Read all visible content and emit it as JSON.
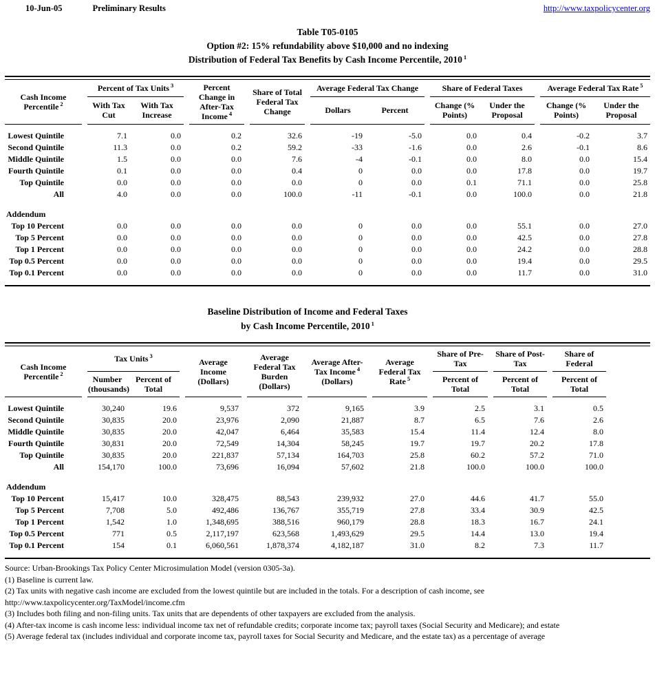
{
  "colors": {
    "link_blue": "#0000EE",
    "text": "#000000",
    "background": "#FFFFFF"
  },
  "page": {
    "date": "10-Jun-05",
    "status": "Preliminary Results",
    "link": "http://www.taxpolicycenter.org"
  },
  "table1": {
    "title_line1": "Table T05-0105",
    "title_line2": "Option #2: 15% refundability above $10,000 and no indexing",
    "title_line3": "Distribution of Federal Tax Benefits by Cash Income Percentile, 2010",
    "title_sup": "1",
    "header": {
      "label": {
        "text": "Cash Income Percentile",
        "sup": "2"
      },
      "groups": [
        {
          "text": "Percent of Tax Units",
          "sup": "3",
          "children": [
            "With Tax Cut",
            "With Tax Increase"
          ]
        },
        {
          "text": "Percent Change in After-Tax Income",
          "sup": "4"
        },
        {
          "text": "Share of Total Federal Tax Change"
        },
        {
          "text": "Average Federal Tax Change",
          "children": [
            "Dollars",
            "Percent"
          ]
        },
        {
          "text": "Share of Federal Taxes",
          "children": [
            "Change (% Points)",
            "Under the Proposal"
          ]
        },
        {
          "text": "Average Federal Tax Rate",
          "sup": "5",
          "children": [
            "Change (% Points)",
            "Under the Proposal"
          ]
        }
      ]
    },
    "rows": [
      {
        "label": "Lowest Quintile",
        "values": [
          "7.1",
          "0.0",
          "0.2",
          "32.6",
          "-19",
          "-5.0",
          "0.0",
          "0.4",
          "-0.2",
          "3.7"
        ]
      },
      {
        "label": "Second Quintile",
        "values": [
          "11.3",
          "0.0",
          "0.2",
          "59.2",
          "-33",
          "-1.6",
          "0.0",
          "2.6",
          "-0.1",
          "8.6"
        ]
      },
      {
        "label": "Middle Quintile",
        "values": [
          "1.5",
          "0.0",
          "0.0",
          "7.6",
          "-4",
          "-0.1",
          "0.0",
          "8.0",
          "0.0",
          "15.4"
        ]
      },
      {
        "label": "Fourth Quintile",
        "values": [
          "0.1",
          "0.0",
          "0.0",
          "0.4",
          "0",
          "0.0",
          "0.0",
          "17.8",
          "0.0",
          "19.7"
        ]
      },
      {
        "label": "Top Quintile",
        "values": [
          "0.0",
          "0.0",
          "0.0",
          "0.0",
          "0",
          "0.0",
          "0.1",
          "71.1",
          "0.0",
          "25.8"
        ]
      },
      {
        "label": "All",
        "values": [
          "4.0",
          "0.0",
          "0.0",
          "100.0",
          "-11",
          "-0.1",
          "0.0",
          "100.0",
          "0.0",
          "21.8"
        ]
      }
    ],
    "addendum_label": "Addendum",
    "addendum_rows": [
      {
        "label": "Top 10 Percent",
        "values": [
          "0.0",
          "0.0",
          "0.0",
          "0.0",
          "0",
          "0.0",
          "0.0",
          "55.1",
          "0.0",
          "27.0"
        ]
      },
      {
        "label": "Top 5 Percent",
        "values": [
          "0.0",
          "0.0",
          "0.0",
          "0.0",
          "0",
          "0.0",
          "0.0",
          "42.5",
          "0.0",
          "27.8"
        ]
      },
      {
        "label": "Top 1 Percent",
        "values": [
          "0.0",
          "0.0",
          "0.0",
          "0.0",
          "0",
          "0.0",
          "0.0",
          "24.2",
          "0.0",
          "28.8"
        ]
      },
      {
        "label": "Top 0.5 Percent",
        "values": [
          "0.0",
          "0.0",
          "0.0",
          "0.0",
          "0",
          "0.0",
          "0.0",
          "19.4",
          "0.0",
          "29.5"
        ]
      },
      {
        "label": "Top 0.1 Percent",
        "values": [
          "0.0",
          "0.0",
          "0.0",
          "0.0",
          "0",
          "0.0",
          "0.0",
          "11.7",
          "0.0",
          "31.0"
        ]
      }
    ]
  },
  "table2": {
    "title_line1": "Baseline Distribution of Income and Federal Taxes",
    "title_line2": "by Cash Income Percentile, 2010",
    "title_sup": "1",
    "header": {
      "label": {
        "text": "Cash Income Percentile",
        "sup": "2"
      },
      "groups": [
        {
          "text": "Tax Units",
          "sup": "3",
          "children": [
            "Number (thousands)",
            "Percent of Total"
          ]
        },
        {
          "text": "Average Income (Dollars)"
        },
        {
          "text": "Average Federal Tax Burden (Dollars)"
        },
        {
          "text": "Average After-Tax Income",
          "sup": "4",
          "suffix": " (Dollars)"
        },
        {
          "text": "Average Federal Tax Rate",
          "sup": "5"
        },
        {
          "text": "Share of Pre-Tax",
          "children": [
            "Percent of Total"
          ]
        },
        {
          "text": "Share of Post-Tax",
          "children": [
            "Percent of Total"
          ]
        },
        {
          "text": "Share of Federal",
          "children": [
            "Percent of Total"
          ]
        }
      ]
    },
    "rows": [
      {
        "label": "Lowest Quintile",
        "values": [
          "30,240",
          "19.6",
          "9,537",
          "372",
          "9,165",
          "3.9",
          "2.5",
          "3.1",
          "0.5"
        ]
      },
      {
        "label": "Second Quintile",
        "values": [
          "30,835",
          "20.0",
          "23,976",
          "2,090",
          "21,887",
          "8.7",
          "6.5",
          "7.6",
          "2.6"
        ]
      },
      {
        "label": "Middle Quintile",
        "values": [
          "30,835",
          "20.0",
          "42,047",
          "6,464",
          "35,583",
          "15.4",
          "11.4",
          "12.4",
          "8.0"
        ]
      },
      {
        "label": "Fourth Quintile",
        "values": [
          "30,831",
          "20.0",
          "72,549",
          "14,304",
          "58,245",
          "19.7",
          "19.7",
          "20.2",
          "17.8"
        ]
      },
      {
        "label": "Top Quintile",
        "values": [
          "30,835",
          "20.0",
          "221,837",
          "57,134",
          "164,703",
          "25.8",
          "60.2",
          "57.2",
          "71.0"
        ]
      },
      {
        "label": "All",
        "values": [
          "154,170",
          "100.0",
          "73,696",
          "16,094",
          "57,602",
          "21.8",
          "100.0",
          "100.0",
          "100.0"
        ]
      }
    ],
    "addendum_label": "Addendum",
    "addendum_rows": [
      {
        "label": "Top 10 Percent",
        "values": [
          "15,417",
          "10.0",
          "328,475",
          "88,543",
          "239,932",
          "27.0",
          "44.6",
          "41.7",
          "55.0"
        ]
      },
      {
        "label": "Top 5 Percent",
        "values": [
          "7,708",
          "5.0",
          "492,486",
          "136,767",
          "355,719",
          "27.8",
          "33.4",
          "30.9",
          "42.5"
        ]
      },
      {
        "label": "Top 1 Percent",
        "values": [
          "1,542",
          "1.0",
          "1,348,695",
          "388,516",
          "960,179",
          "28.8",
          "18.3",
          "16.7",
          "24.1"
        ]
      },
      {
        "label": "Top 0.5 Percent",
        "values": [
          "771",
          "0.5",
          "2,117,197",
          "623,568",
          "1,493,629",
          "29.5",
          "14.4",
          "13.0",
          "19.4"
        ]
      },
      {
        "label": "Top 0.1 Percent",
        "values": [
          "154",
          "0.1",
          "6,060,561",
          "1,878,374",
          "4,182,187",
          "31.0",
          "8.2",
          "7.3",
          "11.7"
        ]
      }
    ]
  },
  "footnotes": [
    "Source: Urban-Brookings Tax Policy Center Microsimulation Model (version 0305-3a).",
    "(1) Baseline is current law.",
    "(2) Tax units with negative cash income are excluded from the lowest quintile but are included in the totals. For a description of cash income, see",
    "http://www.taxpolicycenter.org/TaxModel/income.cfm",
    "(3) Includes both filing and non-filing units.  Tax units that are dependents of other taxpayers are excluded from the analysis.",
    "(4) After-tax income is cash income less: individual income tax net of refundable credits; corporate income tax; payroll taxes (Social Security and Medicare); and estate",
    "(5) Average federal tax (includes individual and corporate income tax, payroll taxes for Social Security and Medicare, and the estate tax) as a percentage of average"
  ]
}
